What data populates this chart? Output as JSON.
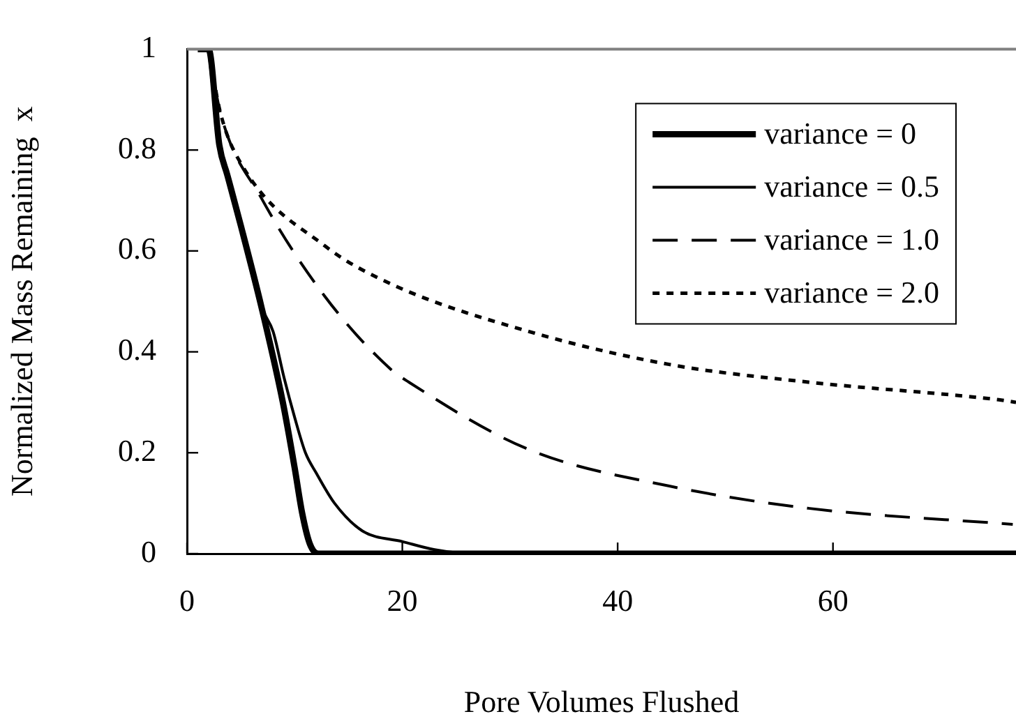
{
  "chart_data": {
    "type": "line",
    "xlabel": "Pore Volumes Flushed",
    "ylabel": "Normalized Mass Remaining  x",
    "xlim": [
      0,
      77
    ],
    "xticks": [
      0,
      20,
      40,
      60
    ],
    "ylim": [
      0,
      1
    ],
    "yticks": [
      0,
      0.2,
      0.4,
      0.6,
      0.8,
      1
    ],
    "grid": false,
    "legend": "top right",
    "marker": "none",
    "series": [
      {
        "name": "variance = 0",
        "color": "#000000",
        "line_style": "solid",
        "x": [
          1,
          2,
          3,
          3.75,
          5,
          6.9,
          8.9,
          10,
          10.7,
          11.4,
          12.2,
          77
        ],
        "values": [
          1,
          1,
          0.81,
          0.75,
          0.65,
          0.49,
          0.3,
          0.17,
          0.08,
          0.02,
          0,
          0
        ]
      },
      {
        "name": "variance = 0.5",
        "color": "#000000",
        "line_style": "solid",
        "x": [
          2,
          3,
          3.75,
          5,
          6.9,
          8,
          9,
          10,
          11,
          12,
          13.7,
          16.3,
          20,
          23,
          26.6,
          77
        ],
        "values": [
          1,
          0.81,
          0.75,
          0.65,
          0.49,
          0.44,
          0.35,
          0.27,
          0.2,
          0.16,
          0.1,
          0.045,
          0.024,
          0.008,
          0,
          0
        ]
      },
      {
        "name": "variance = 1.0",
        "color": "#000000",
        "line_style": "dashed",
        "x": [
          2,
          3.1,
          6.9,
          12.8,
          18.9,
          20.6,
          31.8,
          44.8,
          57.7,
          76.7
        ],
        "values": [
          1,
          0.874,
          0.705,
          0.51,
          0.366,
          0.34,
          0.206,
          0.134,
          0.09,
          0.058
        ]
      },
      {
        "name": "variance = 2.0",
        "color": "#000000",
        "line_style": "dotted",
        "x": [
          2,
          3.1,
          5.1,
          12.8,
          18.9,
          31.8,
          44.8,
          57.7,
          75.4,
          77
        ],
        "values": [
          1,
          0.874,
          0.77,
          0.61,
          0.535,
          0.44,
          0.375,
          0.34,
          0.305,
          0.3
        ]
      }
    ]
  }
}
